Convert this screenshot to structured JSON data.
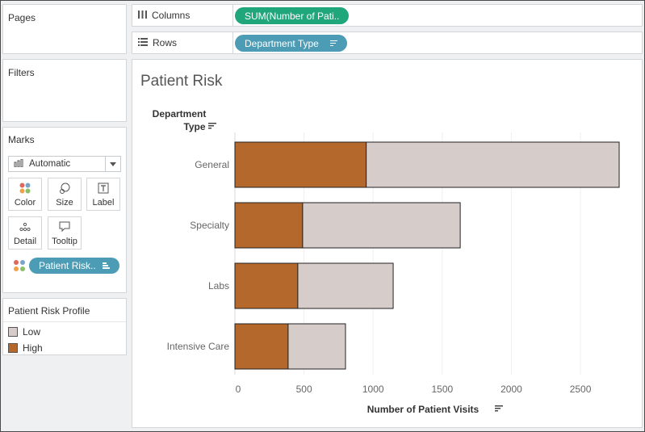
{
  "panels": {
    "pages_title": "Pages",
    "filters_title": "Filters",
    "marks_title": "Marks",
    "mark_type": "Automatic",
    "mark_buttons": {
      "color": "Color",
      "size": "Size",
      "label": "Label",
      "detail": "Detail",
      "tooltip": "Tooltip"
    },
    "marks_pill": "Patient Risk.."
  },
  "shelves": {
    "columns_label": "Columns",
    "columns_pill": "SUM(Number of Pati..",
    "rows_label": "Rows",
    "rows_pill": "Department Type"
  },
  "legend": {
    "title": "Patient Risk Profile",
    "items": [
      {
        "label": "Low",
        "color": "#d6ccc9"
      },
      {
        "label": "High",
        "color": "#b5682b"
      }
    ]
  },
  "colors": {
    "accent_green": "#1fa67a",
    "accent_teal": "#4c9cb5"
  },
  "chart_data": {
    "type": "bar",
    "title": "Patient Risk",
    "ylabel_line1": "Department",
    "ylabel_line2": "Type",
    "xlabel": "Number of Patient Visits",
    "categories": [
      "General",
      "Specialty",
      "Labs",
      "Intensive Care"
    ],
    "series": [
      {
        "name": "High",
        "values": [
          950,
          490,
          455,
          385
        ],
        "color": "#b5682b"
      },
      {
        "name": "Low",
        "values": [
          1830,
          1140,
          690,
          415
        ],
        "color": "#d6ccc9"
      }
    ],
    "stacked": true,
    "orientation": "horizontal",
    "xlim": [
      0,
      2850
    ],
    "xticks": [
      0,
      500,
      1000,
      1500,
      2000,
      2500
    ],
    "grid": true
  }
}
